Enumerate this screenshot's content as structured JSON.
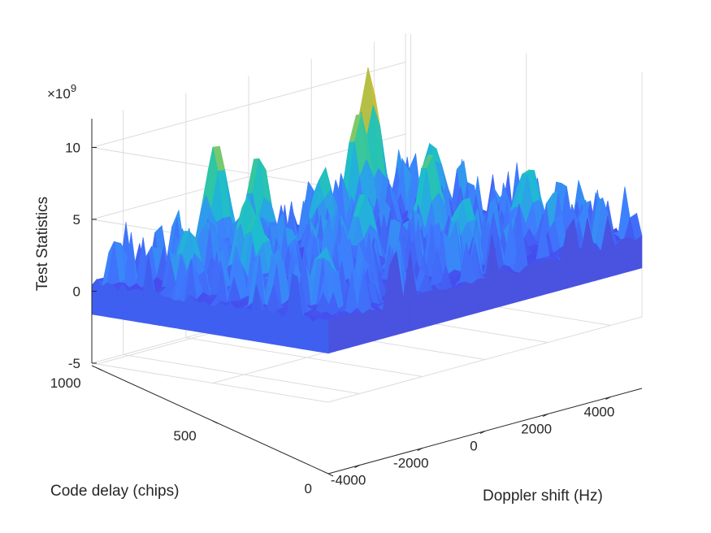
{
  "chart_data": {
    "type": "surface",
    "title": "",
    "xlabel": "Doppler shift (Hz)",
    "ylabel": "Code delay (chips)",
    "zlabel": "Test Statistics",
    "z_exponent": "×10",
    "z_exponent_power": "9",
    "xlim": [
      -5000,
      5000
    ],
    "ylim": [
      0,
      1023
    ],
    "zlim": [
      -5,
      12
    ],
    "x_ticks": [
      -4000,
      -2000,
      0,
      2000,
      4000
    ],
    "x_tick_labels": [
      "-4000",
      "-2000",
      "0",
      "2000",
      "4000"
    ],
    "y_ticks": [
      0,
      500,
      1000
    ],
    "y_tick_labels": [
      "0",
      "500",
      "1000"
    ],
    "z_ticks": [
      -5,
      0,
      5,
      10
    ],
    "z_tick_labels": [
      "-5",
      "0",
      "5",
      "10"
    ],
    "grid": true,
    "colormap": [
      "#3e26a8",
      "#4746eb",
      "#3e7dfe",
      "#2da0e9",
      "#1cbcd1",
      "#2ec6a3",
      "#74ca6f",
      "#c3bd3c",
      "#f9c836",
      "#f9fb15"
    ],
    "surface_description_values": {
      "baseline_level": 0.3,
      "noise_level_typical": 3.0,
      "peak_level_max": 10.7
    },
    "peaks": [
      {
        "x": 3500,
        "y": 980,
        "z": 10.7
      },
      {
        "x": 2600,
        "y": 900,
        "z": 8.6
      },
      {
        "x": -1200,
        "y": 1000,
        "z": 8.4
      },
      {
        "x": -600,
        "y": 900,
        "z": 7.5
      },
      {
        "x": 1900,
        "y": 500,
        "z": 7.3
      },
      {
        "x": -2800,
        "y": 650,
        "z": 6.4
      },
      {
        "x": -3500,
        "y": 520,
        "z": 6.1
      },
      {
        "x": -3300,
        "y": 250,
        "z": 4.2
      },
      {
        "x": 600,
        "y": 780,
        "z": 6.0
      },
      {
        "x": -200,
        "y": 500,
        "z": 5.6
      },
      {
        "x": 1200,
        "y": 250,
        "z": 5.2
      },
      {
        "x": 3600,
        "y": 300,
        "z": 5.8
      },
      {
        "x": 4200,
        "y": 800,
        "z": 5.6
      },
      {
        "x": -4300,
        "y": 700,
        "z": 5.0
      }
    ]
  }
}
